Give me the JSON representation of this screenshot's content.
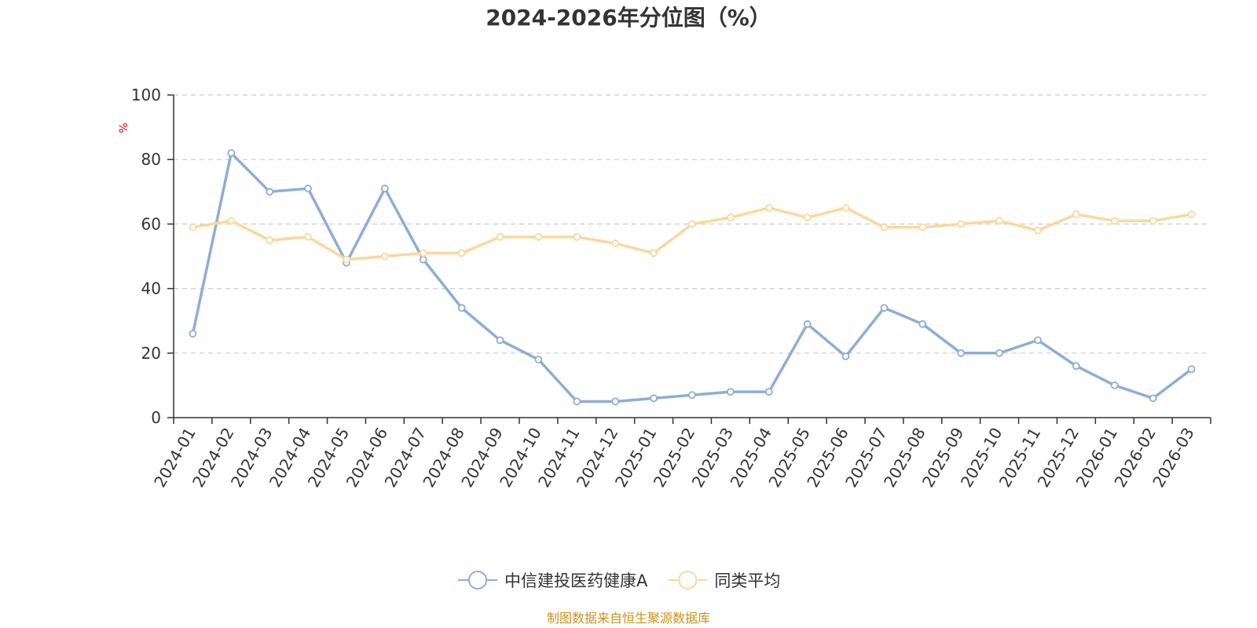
{
  "chart_data": {
    "type": "line",
    "title": "2024-2026年分位图（%）",
    "ylabel": "%",
    "ylim": [
      0,
      100
    ],
    "yticks": [
      "0",
      "20",
      "40",
      "60",
      "80",
      "100"
    ],
    "grid": true,
    "legend_position": "bottom",
    "categories": [
      "2024-01",
      "2024-02",
      "2024-03",
      "2024-04",
      "2024-05",
      "2024-06",
      "2024-07",
      "2024-08",
      "2024-09",
      "2024-10",
      "2024-11",
      "2024-12",
      "2025-01",
      "2025-02",
      "2025-03",
      "2025-04",
      "2025-05",
      "2025-06",
      "2025-07",
      "2025-08",
      "2025-09",
      "2025-10",
      "2025-11",
      "2025-12",
      "2026-01",
      "2026-02",
      "2026-03"
    ],
    "series": [
      {
        "name": "中信建投医药健康A",
        "color": "#8eadd8",
        "values": [
          26,
          82,
          70,
          71,
          48,
          71,
          49,
          34,
          24,
          18,
          5,
          5,
          6,
          7,
          8,
          8,
          29,
          19,
          34,
          29,
          20,
          20,
          24,
          16,
          10,
          6,
          15
        ]
      },
      {
        "name": "同类平均",
        "color": "#fcd79c",
        "values": [
          59,
          61,
          55,
          56,
          49,
          50,
          51,
          51,
          56,
          56,
          56,
          54,
          51,
          60,
          62,
          65,
          62,
          65,
          59,
          59,
          60,
          61,
          58,
          63,
          61,
          61,
          63
        ]
      }
    ]
  },
  "colors": {
    "unit_label": "#e8000b",
    "source": "#c9941d",
    "grid": "#cccccc",
    "axis": "#333333"
  },
  "source_text": "制图数据来自恒生聚源数据库"
}
